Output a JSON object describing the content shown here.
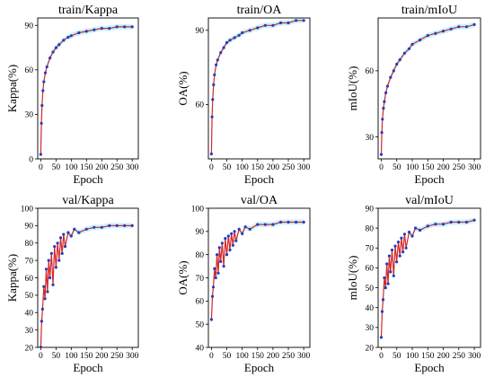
{
  "chart_data": [
    {
      "type": "line",
      "title": "train/Kappa",
      "xlabel": "Epoch",
      "ylabel": "Kappa(%)",
      "xlim": [
        -10,
        320
      ],
      "ylim": [
        0,
        95
      ],
      "xticks": [
        0,
        50,
        100,
        150,
        200,
        250,
        300
      ],
      "yticks": [
        0,
        30,
        60,
        90
      ],
      "grid": false,
      "series": [
        {
          "x": [
            0,
            2,
            4,
            7,
            10,
            15,
            20,
            30,
            40,
            50,
            60,
            75,
            90,
            100,
            125,
            150,
            175,
            200,
            225,
            250,
            275,
            300
          ],
          "values": [
            3,
            24,
            36,
            46,
            52,
            58,
            62,
            68,
            72,
            75,
            77,
            80,
            82,
            83,
            85,
            86,
            87,
            88,
            88,
            89,
            89,
            89
          ]
        }
      ]
    },
    {
      "type": "line",
      "title": "train/OA",
      "xlabel": "Epoch",
      "ylabel": "OA(%)",
      "xlim": [
        -10,
        320
      ],
      "ylim": [
        38,
        95
      ],
      "xticks": [
        0,
        50,
        100,
        150,
        200,
        250,
        300
      ],
      "yticks": [
        60,
        90
      ],
      "grid": false,
      "series": [
        {
          "x": [
            0,
            2,
            4,
            7,
            10,
            15,
            20,
            30,
            40,
            50,
            60,
            75,
            90,
            100,
            125,
            150,
            175,
            200,
            225,
            250,
            275,
            300
          ],
          "values": [
            40,
            55,
            62,
            68,
            72,
            76,
            78,
            81,
            83,
            85,
            86,
            87,
            88,
            89,
            90,
            91,
            92,
            92,
            93,
            93,
            94,
            94
          ]
        }
      ]
    },
    {
      "type": "line",
      "title": "train/mIoU",
      "xlabel": "Epoch",
      "ylabel": "mIoU(%)",
      "xlim": [
        -10,
        320
      ],
      "ylim": [
        20,
        84
      ],
      "xticks": [
        0,
        50,
        100,
        150,
        200,
        250,
        300
      ],
      "yticks": [
        30,
        60
      ],
      "grid": false,
      "series": [
        {
          "x": [
            0,
            2,
            4,
            7,
            10,
            15,
            20,
            30,
            40,
            50,
            60,
            75,
            90,
            100,
            125,
            150,
            175,
            200,
            225,
            250,
            275,
            300
          ],
          "values": [
            22,
            32,
            38,
            43,
            46,
            50,
            53,
            57,
            60,
            63,
            65,
            68,
            70,
            72,
            74,
            76,
            77,
            78,
            79,
            80,
            80,
            81
          ]
        }
      ]
    },
    {
      "type": "line",
      "title": "val/Kappa",
      "xlabel": "Epoch",
      "ylabel": "Kappa(%)",
      "xlim": [
        -10,
        320
      ],
      "ylim": [
        20,
        100
      ],
      "xticks": [
        0,
        50,
        100,
        150,
        200,
        250,
        300
      ],
      "yticks": [
        20,
        30,
        40,
        50,
        60,
        70,
        80,
        90,
        100
      ],
      "grid": false,
      "series": [
        {
          "x": [
            0,
            3,
            6,
            10,
            14,
            18,
            22,
            26,
            30,
            35,
            40,
            45,
            50,
            55,
            60,
            65,
            70,
            75,
            80,
            90,
            100,
            110,
            125,
            150,
            175,
            200,
            225,
            250,
            275,
            300
          ],
          "values": [
            20,
            35,
            42,
            55,
            48,
            65,
            52,
            70,
            60,
            74,
            56,
            78,
            66,
            80,
            70,
            83,
            74,
            85,
            78,
            86,
            84,
            88,
            86,
            88,
            89,
            89,
            90,
            90,
            90,
            90
          ]
        }
      ]
    },
    {
      "type": "line",
      "title": "val/OA",
      "xlabel": "Epoch",
      "ylabel": "OA(%)",
      "xlim": [
        -10,
        320
      ],
      "ylim": [
        40,
        100
      ],
      "xticks": [
        0,
        50,
        100,
        150,
        200,
        250,
        300
      ],
      "yticks": [
        40,
        50,
        60,
        70,
        80,
        90,
        100
      ],
      "grid": false,
      "series": [
        {
          "x": [
            0,
            3,
            6,
            10,
            14,
            18,
            22,
            26,
            30,
            35,
            40,
            45,
            50,
            55,
            60,
            65,
            70,
            75,
            80,
            90,
            100,
            110,
            125,
            150,
            175,
            200,
            225,
            250,
            275,
            300
          ],
          "values": [
            52,
            62,
            66,
            74,
            70,
            80,
            72,
            83,
            77,
            85,
            75,
            87,
            80,
            88,
            82,
            89,
            84,
            90,
            86,
            91,
            89,
            92,
            91,
            93,
            93,
            93,
            94,
            94,
            94,
            94
          ]
        }
      ]
    },
    {
      "type": "line",
      "title": "val/mIoU",
      "xlabel": "Epoch",
      "ylabel": "mIoU(%)",
      "xlim": [
        -10,
        320
      ],
      "ylim": [
        20,
        90
      ],
      "xticks": [
        0,
        50,
        100,
        150,
        200,
        250,
        300
      ],
      "yticks": [
        20,
        30,
        40,
        50,
        60,
        70,
        80,
        90
      ],
      "grid": false,
      "series": [
        {
          "x": [
            0,
            3,
            6,
            10,
            14,
            18,
            22,
            26,
            30,
            35,
            40,
            45,
            50,
            55,
            60,
            65,
            70,
            75,
            80,
            90,
            100,
            110,
            125,
            150,
            175,
            200,
            225,
            250,
            275,
            300
          ],
          "values": [
            25,
            38,
            44,
            55,
            50,
            62,
            52,
            66,
            58,
            69,
            56,
            71,
            63,
            73,
            66,
            75,
            68,
            77,
            70,
            78,
            76,
            80,
            79,
            81,
            82,
            82,
            83,
            83,
            83,
            84
          ]
        }
      ]
    }
  ],
  "colors": {
    "line": "#d62728",
    "marker": "#1f3fbf",
    "band": "#9fe8f7"
  }
}
